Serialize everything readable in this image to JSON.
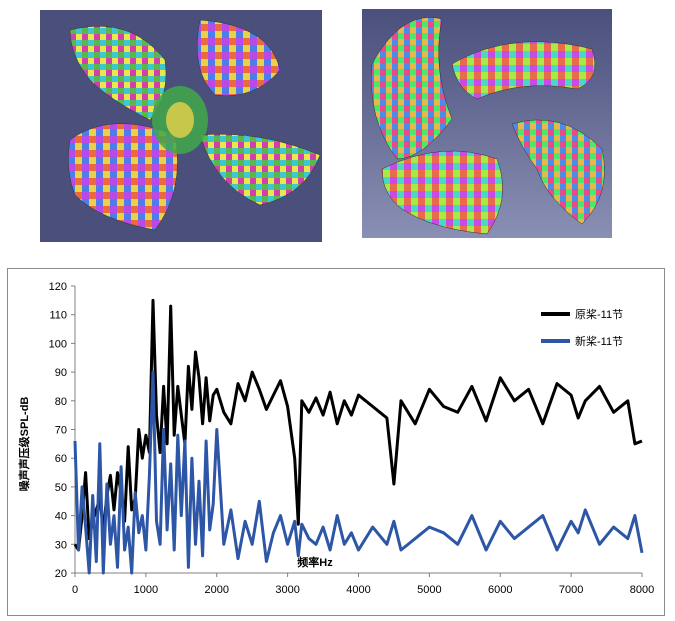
{
  "images": [
    {
      "name": "propeller-model-assembled",
      "description_icon": "propeller-3d-render-icon"
    },
    {
      "name": "propeller-model-exploded",
      "description_icon": "propeller-blades-exploded-icon"
    }
  ],
  "chart_data": {
    "type": "line",
    "title": "",
    "xlabel": "频率Hz",
    "ylabel": "噪声声压级SPL-dB",
    "xlim": [
      0,
      8000
    ],
    "ylim": [
      20,
      120
    ],
    "xticks": [
      0,
      1000,
      2000,
      3000,
      4000,
      5000,
      6000,
      7000,
      8000
    ],
    "yticks": [
      20,
      30,
      40,
      50,
      60,
      70,
      80,
      90,
      100,
      110,
      120
    ],
    "grid": false,
    "legend_position": "top-right",
    "series": [
      {
        "name": "原桨-11节",
        "color": "#000000",
        "x": [
          0,
          50,
          100,
          150,
          200,
          250,
          300,
          350,
          400,
          450,
          500,
          550,
          600,
          650,
          700,
          750,
          800,
          850,
          900,
          950,
          1000,
          1050,
          1100,
          1150,
          1200,
          1250,
          1300,
          1350,
          1400,
          1450,
          1500,
          1550,
          1600,
          1650,
          1700,
          1750,
          1800,
          1850,
          1900,
          1950,
          2000,
          2100,
          2200,
          2300,
          2400,
          2500,
          2600,
          2700,
          2800,
          2900,
          3000,
          3100,
          3150,
          3200,
          3300,
          3400,
          3500,
          3600,
          3700,
          3800,
          3900,
          4000,
          4200,
          4400,
          4500,
          4600,
          4800,
          5000,
          5200,
          5400,
          5600,
          5800,
          6000,
          6200,
          6400,
          6600,
          6800,
          7000,
          7100,
          7200,
          7400,
          7600,
          7800,
          7900,
          8000
        ],
        "values": [
          30,
          28,
          40,
          55,
          32,
          38,
          42,
          46,
          35,
          47,
          54,
          42,
          55,
          48,
          38,
          64,
          42,
          46,
          70,
          60,
          68,
          62,
          115,
          75,
          62,
          85,
          65,
          113,
          68,
          85,
          75,
          65,
          92,
          77,
          97,
          88,
          72,
          88,
          73,
          82,
          84,
          76,
          72,
          86,
          80,
          90,
          84,
          77,
          82,
          87,
          78,
          60,
          37,
          80,
          76,
          81,
          75,
          83,
          72,
          80,
          75,
          82,
          78,
          74,
          51,
          80,
          72,
          84,
          78,
          76,
          85,
          73,
          88,
          80,
          84,
          72,
          86,
          82,
          74,
          80,
          85,
          76,
          80,
          65,
          66
        ]
      },
      {
        "name": "新桨-11节",
        "color": "#2e56a6",
        "x": [
          0,
          50,
          100,
          150,
          200,
          250,
          300,
          350,
          400,
          450,
          500,
          550,
          600,
          650,
          700,
          750,
          800,
          850,
          900,
          950,
          1000,
          1050,
          1100,
          1150,
          1200,
          1250,
          1300,
          1350,
          1400,
          1450,
          1500,
          1550,
          1600,
          1650,
          1700,
          1750,
          1800,
          1850,
          1900,
          1950,
          2000,
          2100,
          2200,
          2300,
          2400,
          2500,
          2600,
          2700,
          2800,
          2900,
          3000,
          3100,
          3150,
          3200,
          3300,
          3400,
          3500,
          3600,
          3700,
          3800,
          3900,
          4000,
          4200,
          4400,
          4500,
          4600,
          4800,
          5000,
          5200,
          5400,
          5600,
          5800,
          6000,
          6200,
          6400,
          6600,
          6800,
          7000,
          7100,
          7200,
          7400,
          7600,
          7800,
          7900,
          8000
        ],
        "values": [
          66,
          28,
          50,
          36,
          20,
          47,
          24,
          65,
          20,
          51,
          30,
          40,
          22,
          57,
          28,
          36,
          20,
          48,
          34,
          40,
          28,
          54,
          90,
          38,
          30,
          70,
          35,
          58,
          28,
          68,
          40,
          66,
          22,
          60,
          30,
          52,
          26,
          66,
          35,
          44,
          70,
          30,
          42,
          25,
          38,
          30,
          45,
          24,
          34,
          40,
          30,
          38,
          26,
          37,
          32,
          30,
          36,
          28,
          40,
          30,
          34,
          28,
          36,
          30,
          38,
          28,
          32,
          36,
          34,
          30,
          40,
          28,
          38,
          32,
          36,
          40,
          28,
          38,
          34,
          42,
          30,
          36,
          32,
          40,
          27
        ]
      }
    ]
  }
}
